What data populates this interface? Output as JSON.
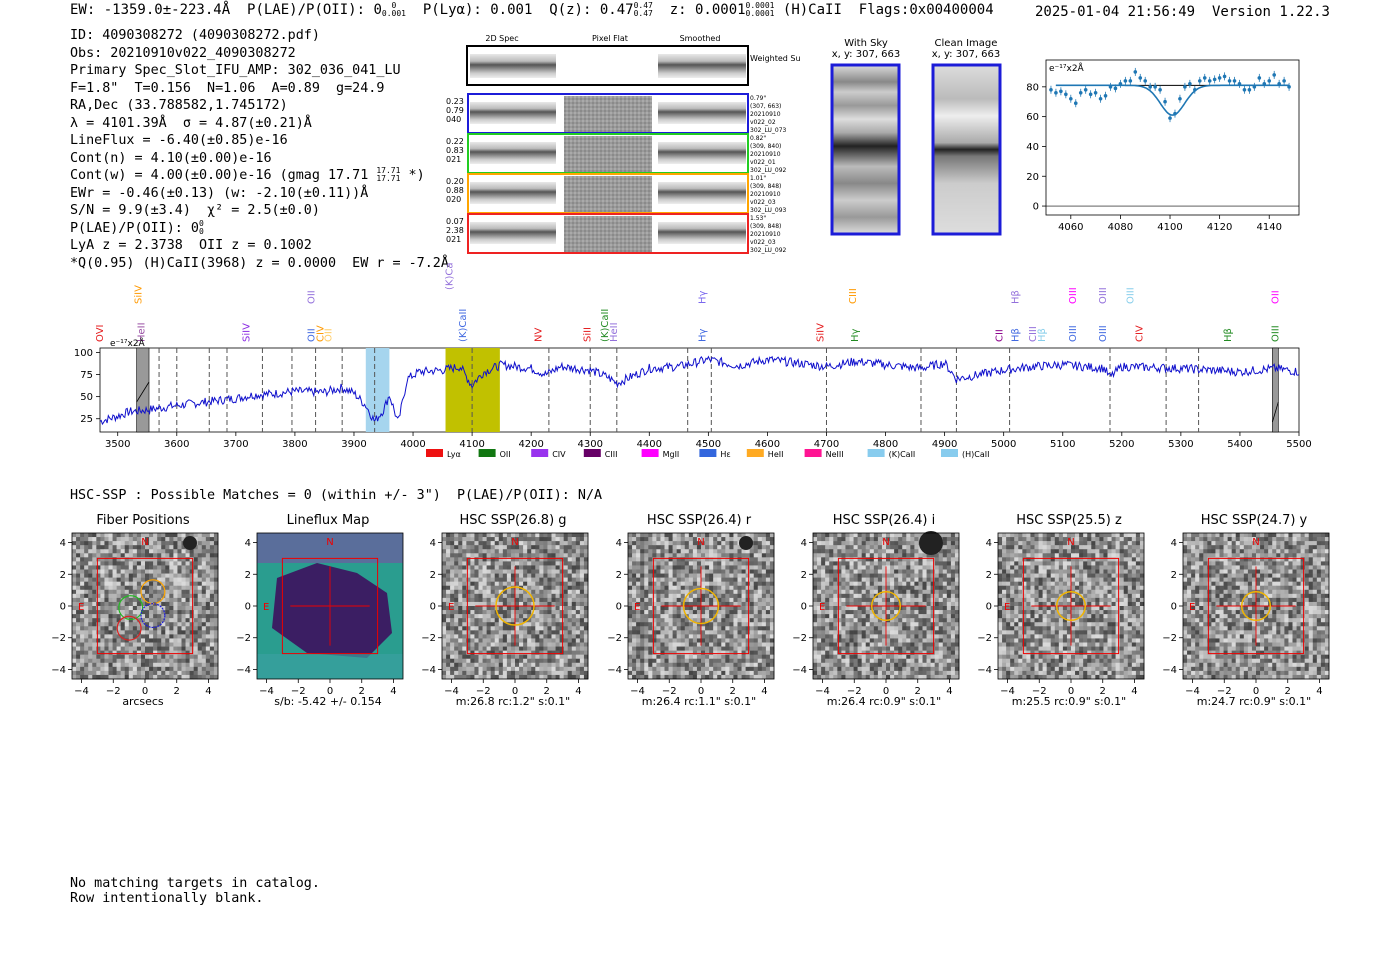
{
  "header": {
    "ew": "EW: -1359.0±-223.4Å",
    "plae_label": "P(LAE)/P(OII): 0",
    "plae_sup": "0",
    "plae_sub": "0.001",
    "plya": "P(Lyα): 0.001",
    "qz_label": "Q(z): 0.47",
    "qz_sup": "0.47",
    "qz_sub": "0.47",
    "z_label": "z: 0.0001",
    "z_sup": "0.0001",
    "z_sub": "0.0001",
    "ion": "(H)CaII",
    "flags": "Flags:0x00400004",
    "timestamp": "2025-01-04 21:56:49",
    "version": "Version 1.22.3"
  },
  "info": {
    "id": "ID: 4090308272 (4090308272.pdf)",
    "obs": "Obs: 20210910v022_4090308272",
    "primary": "Primary Spec_Slot_IFU_AMP: 302_036_041_LU",
    "params": "F=1.8\"  T=0.156  N=1.06  A=0.89  g=24.9",
    "radec": "RA,Dec (33.788582,1.745172)",
    "lambda": "λ = 4101.39Å  σ = 4.87(±0.21)Å",
    "lineflux": "LineFlux = -6.40(±0.85)e-16",
    "contn": "Cont(n) = 4.10(±0.00)e-16",
    "contw_a": "Cont(w) = 4.00(±0.00)e-16 (gmag 17.71",
    "contw_sup": "17.71",
    "contw_sub": "17.71",
    "contw_b": " *)",
    "ewr": "EWr = -0.46(±0.13) (w: -2.10(±0.11))Å",
    "sn": "S/N = 9.9(±3.4)  χ² = 2.5(±0.0)",
    "plae": "P(LAE)/P(OII): 0",
    "plae_sup": "0",
    "plae_sub": "0",
    "lya": "LyA z = 2.3738  OII z = 0.1002",
    "q95": "*Q(0.95) (H)CaII(3968) z = 0.0000  EW r = -7.2Å"
  },
  "cutouts": {
    "col_headers": [
      "2D Spec",
      "Pixel Flat",
      "Smoothed"
    ],
    "weighted_label": "Weighted Sum",
    "rows": [
      {
        "left": [
          "0.23",
          "0.79",
          "040"
        ],
        "right": [
          "0.79\"",
          "(307, 663)",
          "20210910",
          "v022_02",
          "302_LU_073"
        ],
        "color": "#1c1cd8"
      },
      {
        "left": [
          "0.22",
          "0.83",
          "021"
        ],
        "right": [
          "0.82\"",
          "(309, 840)",
          "20210910",
          "v022_01",
          "302_LU_092"
        ],
        "color": "#22cc22"
      },
      {
        "left": [
          "0.20",
          "0.88",
          "020"
        ],
        "right": [
          "1.01\"",
          "(309, 848)",
          "20210910",
          "v022_03",
          "302_LU_093"
        ],
        "color": "#ffa500"
      },
      {
        "left": [
          "0.07",
          "2.38",
          "021"
        ],
        "right": [
          "1.53\"",
          "(309, 848)",
          "20210910",
          "v022_03",
          "302_LU_092"
        ],
        "color": "#ee2222"
      }
    ],
    "with_sky_title": "With Sky",
    "with_sky_xy": "x, y: 307, 663",
    "clean_title": "Clean Image",
    "clean_xy": "x, y: 307, 663"
  },
  "zoom_chart": {
    "type": "scatter",
    "ylabel_note": "e⁻¹⁷x2Å",
    "xlim": [
      4050,
      4152
    ],
    "ylim": [
      -6,
      98
    ],
    "xticks": [
      "4060",
      "4080",
      "4100",
      "4120",
      "4140"
    ],
    "yticks": [
      "0",
      "20",
      "40",
      "60",
      "80"
    ],
    "x": [
      4052,
      4054,
      4056,
      4058,
      4060,
      4062,
      4064,
      4066,
      4068,
      4070,
      4072,
      4074,
      4076,
      4078,
      4080,
      4082,
      4084,
      4086,
      4088,
      4090,
      4092,
      4094,
      4096,
      4098,
      4100,
      4102,
      4104,
      4106,
      4108,
      4110,
      4112,
      4114,
      4116,
      4118,
      4120,
      4122,
      4124,
      4126,
      4128,
      4130,
      4132,
      4134,
      4136,
      4138,
      4140,
      4142,
      4144,
      4146,
      4148
    ],
    "y": [
      78,
      76,
      77,
      75,
      72,
      69,
      76,
      78,
      75,
      76,
      72,
      74,
      80,
      79,
      82,
      84,
      84,
      90,
      86,
      84,
      80,
      80,
      78,
      70,
      59,
      62,
      72,
      80,
      82,
      78,
      84,
      86,
      84,
      85,
      86,
      87,
      84,
      84,
      82,
      78,
      78,
      80,
      86,
      82,
      84,
      88,
      82,
      84,
      80
    ],
    "fit_baseline": 81,
    "fit_center": 4101,
    "fit_depth": 20,
    "fit_sigma": 4.9
  },
  "spectrum_chart": {
    "type": "line",
    "xlim": [
      3470,
      5500
    ],
    "ylim": [
      10,
      105
    ],
    "xticks": [
      "3500",
      "3600",
      "3700",
      "3800",
      "3900",
      "4000",
      "4100",
      "4200",
      "4300",
      "4400",
      "4500",
      "4600",
      "4700",
      "4800",
      "4900",
      "5000",
      "5100",
      "5200",
      "5300",
      "5400",
      "5500"
    ],
    "yticks": [
      "25",
      "50",
      "75",
      "100"
    ],
    "unit_note": "e⁻¹⁷x2Å",
    "knots_x": [
      3470,
      3500,
      3520,
      3550,
      3580,
      3600,
      3650,
      3700,
      3730,
      3760,
      3800,
      3850,
      3880,
      3900,
      3920,
      3935,
      3950,
      3960,
      3975,
      3990,
      4010,
      4050,
      4080,
      4100,
      4102,
      4120,
      4150,
      4200,
      4225,
      4250,
      4300,
      4330,
      4345,
      4400,
      4450,
      4500,
      4550,
      4600,
      4700,
      4750,
      4800,
      4860,
      4900,
      4920,
      5000,
      5050,
      5100,
      5170,
      5180,
      5200,
      5250,
      5300,
      5400,
      5460,
      5500
    ],
    "knots_y": [
      22,
      28,
      33,
      35,
      38,
      40,
      44,
      48,
      52,
      53,
      56,
      55,
      60,
      54,
      40,
      22,
      35,
      52,
      20,
      70,
      78,
      80,
      84,
      62,
      65,
      78,
      86,
      82,
      75,
      84,
      80,
      72,
      65,
      82,
      84,
      92,
      85,
      92,
      84,
      90,
      86,
      82,
      88,
      70,
      80,
      84,
      86,
      82,
      72,
      84,
      83,
      82,
      78,
      82,
      78
    ],
    "lines": [
      {
        "name": "OVI",
        "wl": 3470,
        "color": "#e41a1c",
        "row": "low"
      },
      {
        "name": "HeII",
        "wl": 3540,
        "color": "#984ea3",
        "row": "low"
      },
      {
        "name": "SiIV",
        "wl": 3535,
        "color": "#ff9900",
        "row": "high"
      },
      {
        "name": "SiIV",
        "wl": 3718,
        "color": "#8a2be2",
        "row": "low"
      },
      {
        "name": "OII",
        "wl": 3828,
        "color": "#4169e1",
        "row": "low"
      },
      {
        "name": "CIV",
        "wl": 3843,
        "color": "#ff9900",
        "row": "low"
      },
      {
        "name": "OII",
        "wl": 3857,
        "color": "#ffcc66",
        "row": "low"
      },
      {
        "name": "OII",
        "wl": 3828,
        "color": "#9370db",
        "row": "high"
      },
      {
        "name": "(K)CaII",
        "wl": 4062,
        "color": "#9370db",
        "row": "top"
      },
      {
        "name": "(K)CaII",
        "wl": 4085,
        "color": "#4169e1",
        "row": "low"
      },
      {
        "name": "NV",
        "wl": 4212,
        "color": "#e41a1c",
        "row": "low"
      },
      {
        "name": "SiII",
        "wl": 4295,
        "color": "#e41a1c",
        "row": "low"
      },
      {
        "name": "(K)CaII",
        "wl": 4325,
        "color": "#228b22",
        "row": "low"
      },
      {
        "name": "HeII",
        "wl": 4340,
        "color": "#9370db",
        "row": "low"
      },
      {
        "name": "Hγ",
        "wl": 4490,
        "color": "#7b68ee",
        "row": "high"
      },
      {
        "name": "Hγ",
        "wl": 4490,
        "color": "#4169e1",
        "row": "low"
      },
      {
        "name": "SiIV",
        "wl": 4690,
        "color": "#e41a1c",
        "row": "low"
      },
      {
        "name": "Hγ",
        "wl": 4748,
        "color": "#228b22",
        "row": "low"
      },
      {
        "name": "CIII",
        "wl": 4745,
        "color": "#ff9900",
        "row": "high"
      },
      {
        "name": "CII",
        "wl": 4993,
        "color": "#8b008b",
        "row": "low"
      },
      {
        "name": "Hβ",
        "wl": 5020,
        "color": "#4169e1",
        "row": "low"
      },
      {
        "name": "Hβ",
        "wl": 5020,
        "color": "#9370db",
        "row": "high"
      },
      {
        "name": "CIII",
        "wl": 5050,
        "color": "#9370db",
        "row": "low"
      },
      {
        "name": "Hβ",
        "wl": 5065,
        "color": "#87ceeb",
        "row": "low"
      },
      {
        "name": "OIII",
        "wl": 5117,
        "color": "#4169e1",
        "row": "low"
      },
      {
        "name": "OIII",
        "wl": 5117,
        "color": "#ff00ff",
        "row": "high"
      },
      {
        "name": "OIII",
        "wl": 5168,
        "color": "#4169e1",
        "row": "low"
      },
      {
        "name": "OIII",
        "wl": 5168,
        "color": "#9370db",
        "row": "high"
      },
      {
        "name": "OIII",
        "wl": 5215,
        "color": "#87ceeb",
        "row": "high"
      },
      {
        "name": "CIV",
        "wl": 5230,
        "color": "#e41a1c",
        "row": "low"
      },
      {
        "name": "Hβ",
        "wl": 5380,
        "color": "#228b22",
        "row": "low"
      },
      {
        "name": "OIII",
        "wl": 5460,
        "color": "#228b22",
        "row": "low"
      },
      {
        "name": "OII",
        "wl": 5460,
        "color": "#ff00ff",
        "row": "high"
      }
    ],
    "dashed_wl": [
      3570,
      3600,
      3655,
      3685,
      3745,
      3795,
      3835,
      3880,
      3935,
      4100,
      4230,
      4300,
      4345,
      4465,
      4505,
      4700,
      4860,
      4920,
      5010,
      5180,
      5275,
      5330
    ],
    "legend": [
      {
        "label": "Lyα",
        "color": "#ee1111"
      },
      {
        "label": "OII",
        "color": "#117711"
      },
      {
        "label": "CIV",
        "color": "#9933ee"
      },
      {
        "label": "CIII",
        "color": "#660066"
      },
      {
        "label": "MgII",
        "color": "#ff00ff"
      },
      {
        "label": "Hε",
        "color": "#3366dd"
      },
      {
        "label": "HeII",
        "color": "#ffaa22"
      },
      {
        "label": "NeIII",
        "color": "#ff1493"
      },
      {
        "label": "(K)CaII",
        "color": "#88ccee"
      },
      {
        "label": "(H)CaII",
        "color": "#88ccee"
      }
    ]
  },
  "hsc": {
    "summary": "HSC-SSP : Possible Matches = 0 (within +/- 3\")  P(LAE)/P(OII): N/A",
    "north": "N",
    "east": "E",
    "axis_ticks": [
      "−4",
      "−2",
      "0",
      "2",
      "4"
    ],
    "panels": [
      {
        "title": "Fiber Positions",
        "label": "arcsecs",
        "kind": "fibers"
      },
      {
        "title": "Lineflux Map",
        "label": "s/b: -5.42 +/- 0.154",
        "kind": "lineflux"
      },
      {
        "title": "HSC SSP(26.8) g",
        "label": "m:26.8 rc:1.2\"  s:0.1\"",
        "kind": "hsc",
        "rc": 1.2
      },
      {
        "title": "HSC SSP(26.4) r",
        "label": "m:26.4 rc:1.1\"  s:0.1\"",
        "kind": "hsc",
        "rc": 1.1
      },
      {
        "title": "HSC SSP(26.4) i",
        "label": "m:26.4 rc:0.9\"  s:0.1\"",
        "kind": "hsc",
        "rc": 0.9
      },
      {
        "title": "HSC SSP(25.5) z",
        "label": "m:25.5 rc:0.9\"  s:0.1\"",
        "kind": "hsc",
        "rc": 0.9
      },
      {
        "title": "HSC SSP(24.7) y",
        "label": "m:24.7 rc:0.9\"  s:0.1\"",
        "kind": "hsc",
        "rc": 0.9
      }
    ]
  },
  "footer": {
    "line1": "No matching targets in catalog.",
    "line2": "Row intentionally blank."
  }
}
